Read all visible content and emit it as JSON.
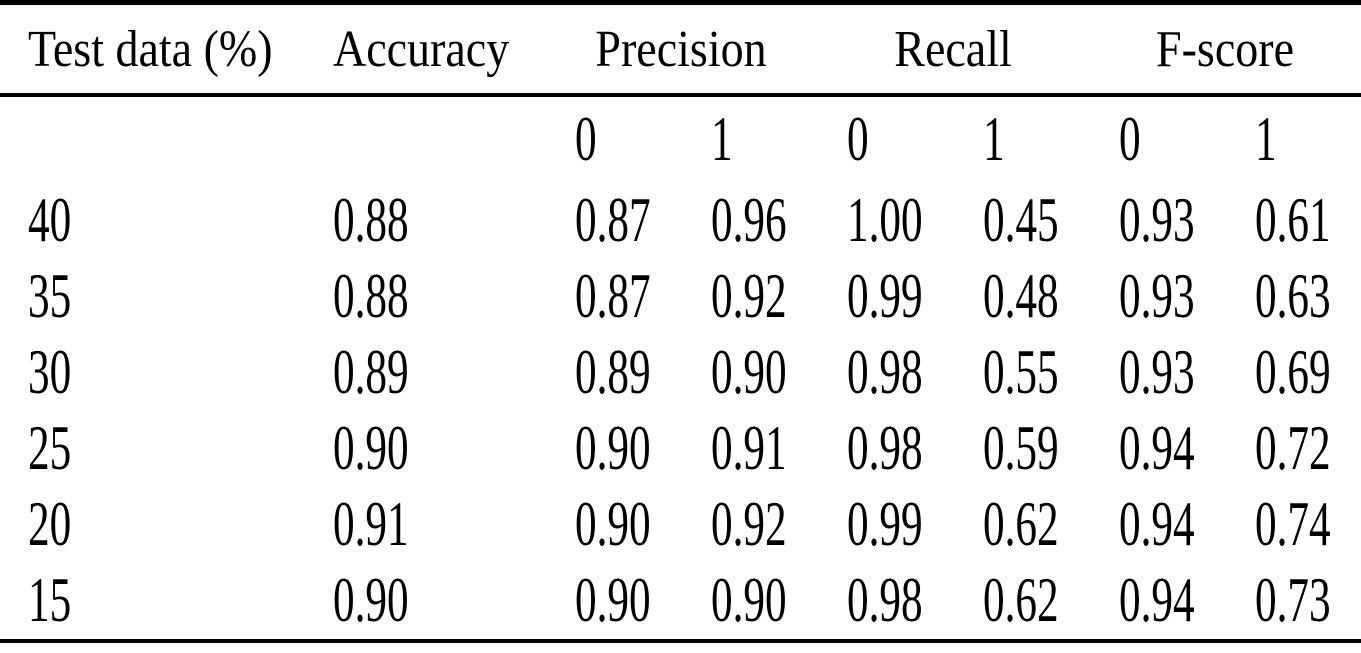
{
  "page": {
    "background_color": "#ffffff",
    "text_color": "#000000",
    "rule_color": "#000000"
  },
  "table": {
    "header": {
      "test_data": "Test data (%)",
      "accuracy": "Accuracy",
      "precision": "Precision",
      "recall": "Recall",
      "fscore": "F-score"
    },
    "subheader": {
      "class0": "0",
      "class1": "1"
    },
    "rows": [
      {
        "test_data": "40",
        "accuracy": "0.88",
        "precision_0": "0.87",
        "precision_1": "0.96",
        "recall_0": "1.00",
        "recall_1": "0.45",
        "fscore_0": "0.93",
        "fscore_1": "0.61"
      },
      {
        "test_data": "35",
        "accuracy": "0.88",
        "precision_0": "0.87",
        "precision_1": "0.92",
        "recall_0": "0.99",
        "recall_1": "0.48",
        "fscore_0": "0.93",
        "fscore_1": "0.63"
      },
      {
        "test_data": "30",
        "accuracy": "0.89",
        "precision_0": "0.89",
        "precision_1": "0.90",
        "recall_0": "0.98",
        "recall_1": "0.55",
        "fscore_0": "0.93",
        "fscore_1": "0.69"
      },
      {
        "test_data": "25",
        "accuracy": "0.90",
        "precision_0": "0.90",
        "precision_1": "0.91",
        "recall_0": "0.98",
        "recall_1": "0.59",
        "fscore_0": "0.94",
        "fscore_1": "0.72"
      },
      {
        "test_data": "20",
        "accuracy": "0.91",
        "precision_0": "0.90",
        "precision_1": "0.92",
        "recall_0": "0.99",
        "recall_1": "0.62",
        "fscore_0": "0.94",
        "fscore_1": "0.74"
      },
      {
        "test_data": "15",
        "accuracy": "0.90",
        "precision_0": "0.90",
        "precision_1": "0.90",
        "recall_0": "0.98",
        "recall_1": "0.62",
        "fscore_0": "0.94",
        "fscore_1": "0.73"
      }
    ]
  },
  "chart_data": {
    "type": "table",
    "title": "",
    "columns": [
      "Test data (%)",
      "Accuracy",
      "Precision 0",
      "Precision 1",
      "Recall 0",
      "Recall 1",
      "F-score 0",
      "F-score 1"
    ],
    "rows": [
      [
        "40",
        "0.88",
        "0.87",
        "0.96",
        "1.00",
        "0.45",
        "0.93",
        "0.61"
      ],
      [
        "35",
        "0.88",
        "0.87",
        "0.92",
        "0.99",
        "0.48",
        "0.93",
        "0.63"
      ],
      [
        "30",
        "0.89",
        "0.89",
        "0.90",
        "0.98",
        "0.55",
        "0.93",
        "0.69"
      ],
      [
        "25",
        "0.90",
        "0.90",
        "0.91",
        "0.98",
        "0.59",
        "0.94",
        "0.72"
      ],
      [
        "20",
        "0.91",
        "0.90",
        "0.92",
        "0.99",
        "0.62",
        "0.94",
        "0.74"
      ],
      [
        "15",
        "0.90",
        "0.90",
        "0.90",
        "0.98",
        "0.62",
        "0.94",
        "0.73"
      ]
    ]
  }
}
